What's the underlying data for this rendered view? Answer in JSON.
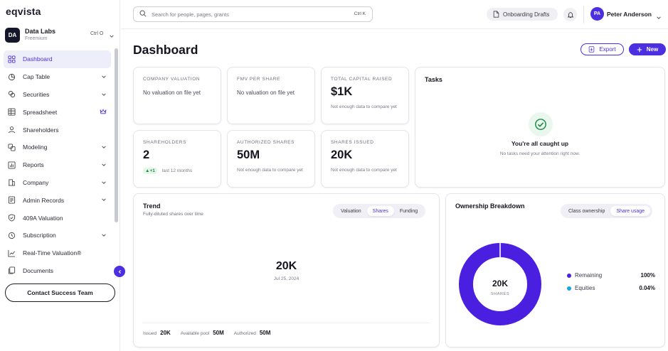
{
  "brand": {
    "logo": "eqvista"
  },
  "org": {
    "initials": "DA",
    "name": "Data Labs",
    "plan": "Freemium",
    "shortcut": "Ctrl O"
  },
  "sidebar": {
    "items": [
      {
        "label": "Dashboard",
        "icon": "grid-icon"
      },
      {
        "label": "Cap Table",
        "icon": "pie-icon"
      },
      {
        "label": "Securities",
        "icon": "coins-icon"
      },
      {
        "label": "Spreadsheet",
        "icon": "table-icon"
      },
      {
        "label": "Shareholders",
        "icon": "users-icon"
      },
      {
        "label": "Modeling",
        "icon": "layers-icon"
      },
      {
        "label": "Reports",
        "icon": "report-icon"
      },
      {
        "label": "Company",
        "icon": "building-icon"
      },
      {
        "label": "Admin Records",
        "icon": "records-icon"
      },
      {
        "label": "409A Valuation",
        "icon": "shield-icon"
      },
      {
        "label": "Subscription",
        "icon": "refresh-icon"
      },
      {
        "label": "Real-Time Valuation®",
        "icon": "trend-icon"
      },
      {
        "label": "Documents",
        "icon": "docs-icon"
      }
    ],
    "contact_label": "Contact Success Team"
  },
  "topbar": {
    "search_placeholder": "Search for people, pages, grants",
    "search_shortcut": "Ctrl K",
    "drafts_label": "Onboarding Drafts",
    "user_initials": "PA",
    "user_name": "Peter Anderson"
  },
  "header": {
    "title": "Dashboard",
    "export_label": "Export",
    "new_label": "New"
  },
  "stats": {
    "company_valuation": {
      "label": "COMPANY VALUATION",
      "empty": "No valuation on file yet"
    },
    "fmv_per_share": {
      "label": "FMV PER SHARE",
      "empty": "No valuation on file yet"
    },
    "total_capital_raised": {
      "label": "TOTAL CAPITAL RAISED",
      "value": "$1K",
      "note": "Not enough data to compare yet"
    },
    "shareholders": {
      "label": "SHAREHOLDERS",
      "value": "2",
      "delta": "+1",
      "delta_period": "last 12 months"
    },
    "authorized_shares": {
      "label": "AUTHORIZED SHARES",
      "value": "50M",
      "note": "Not enough data to compare yet"
    },
    "shares_issued": {
      "label": "SHARES ISSUED",
      "value": "20K",
      "note": "Not enough data to compare yet"
    }
  },
  "tasks": {
    "title": "Tasks",
    "heading": "You're all caught up",
    "sub": "No tasks need your attention right now."
  },
  "trend": {
    "title": "Trend",
    "subtitle": "Fully-diluted shares over time",
    "tabs": [
      "Valuation",
      "Shares",
      "Funding"
    ],
    "active_tab": "Shares",
    "value": "20K",
    "date": "Jul 25, 2024",
    "footer": {
      "issued_label": "Issued",
      "issued_value": "20K",
      "pool_label": "Available pool",
      "pool_value": "50M",
      "authorized_label": "Authorized",
      "authorized_value": "50M"
    }
  },
  "ownership": {
    "title": "Ownership Breakdown",
    "tabs": [
      "Class ownership",
      "Share usage"
    ],
    "active_tab": "Share usage",
    "center_value": "20K",
    "center_label": "SHARES",
    "legend": [
      {
        "label": "Remaining",
        "pct": "100%",
        "value": 99.96,
        "color": "#4b1fe0"
      },
      {
        "label": "Equities",
        "pct": "0.04%",
        "value": 0.04,
        "color": "#1aa3e8"
      }
    ]
  },
  "colors": {
    "accent": "#4b2fe0",
    "success": "#1e8a45"
  }
}
